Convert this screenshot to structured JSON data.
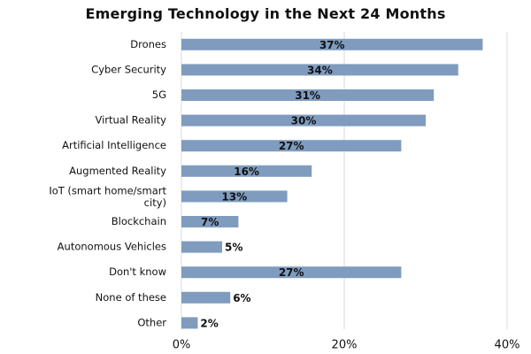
{
  "chart_data": {
    "type": "bar",
    "orientation": "horizontal",
    "title": "Emerging Technology in the Next 24 Months",
    "xlabel": "",
    "ylabel": "",
    "categories": [
      "Drones",
      "Cyber Security",
      "5G",
      "Virtual Reality",
      "Artificial Intelligence",
      "Augmented Reality",
      "IoT (smart home/smart city)",
      "Blockchain",
      "Autonomous Vehicles",
      "Don't know",
      "None of these",
      "Other"
    ],
    "values": [
      37,
      34,
      31,
      30,
      27,
      16,
      13,
      7,
      5,
      27,
      6,
      2
    ],
    "value_labels": [
      "37%",
      "34%",
      "31%",
      "30%",
      "27%",
      "16%",
      "13%",
      "7%",
      "5%",
      "27%",
      "6%",
      "2%"
    ],
    "xlim": [
      0,
      40
    ],
    "xticks": [
      0,
      20,
      40
    ],
    "xtick_labels": [
      "0%",
      "20%",
      "40%"
    ],
    "gridlines": true,
    "bar_color": "#7f9cbf",
    "grid_color": "#d9d9d9"
  }
}
